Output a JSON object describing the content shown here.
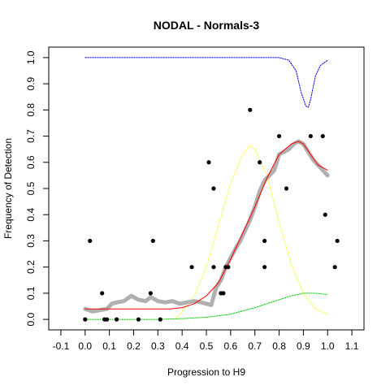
{
  "chart_data": {
    "type": "scatter",
    "title": "NODAL - Normals-3",
    "xlabel": "Progression to H9",
    "ylabel": "Frequency of Detection",
    "xlim": [
      -0.15,
      1.15
    ],
    "ylim": [
      -0.04,
      1.04
    ],
    "x_ticks": [
      -0.1,
      0.0,
      0.1,
      0.2,
      0.3,
      0.4,
      0.5,
      0.6,
      0.7,
      0.8,
      0.9,
      1.0,
      1.1
    ],
    "x_tick_labels": [
      "-0.1",
      "0.0",
      "0.1",
      "0.2",
      "0.3",
      "0.4",
      "0.5",
      "0.6",
      "0.7",
      "0.8",
      "0.9",
      "1.0",
      "1.1"
    ],
    "y_ticks": [
      0.0,
      0.1,
      0.2,
      0.3,
      0.4,
      0.5,
      0.6,
      0.7,
      0.8,
      0.9,
      1.0
    ],
    "y_tick_labels": [
      "0.0",
      "0.1",
      "0.2",
      "0.3",
      "0.4",
      "0.5",
      "0.6",
      "0.7",
      "0.8",
      "0.9",
      "1.0"
    ],
    "colors": {
      "points": "#000000",
      "smoothed": "#b0b0b0",
      "fit": "#ff0000",
      "blue_curve": "#0000ff",
      "yellow_curve": "#ffff66",
      "green_curve": "#00cc00"
    },
    "series": [
      {
        "name": "observed",
        "style": "points",
        "x": [
          0.0,
          0.02,
          0.07,
          0.08,
          0.09,
          0.13,
          0.22,
          0.27,
          0.28,
          0.31,
          0.44,
          0.51,
          0.53,
          0.53,
          0.56,
          0.57,
          0.58,
          0.59,
          0.68,
          0.72,
          0.74,
          0.74,
          0.8,
          0.83,
          0.93,
          0.98,
          0.99,
          1.03,
          1.04
        ],
        "y": [
          0.0,
          0.3,
          0.1,
          0.0,
          0.0,
          0.0,
          0.0,
          0.1,
          0.3,
          0.0,
          0.2,
          0.6,
          0.5,
          0.2,
          0.1,
          0.1,
          0.2,
          0.2,
          0.8,
          0.6,
          0.3,
          0.2,
          0.7,
          0.5,
          0.7,
          0.7,
          0.4,
          0.2,
          0.3
        ]
      },
      {
        "name": "smoothed",
        "style": "thick-line",
        "x": [
          0.0,
          0.03,
          0.06,
          0.09,
          0.11,
          0.13,
          0.16,
          0.19,
          0.22,
          0.25,
          0.27,
          0.3,
          0.33,
          0.36,
          0.39,
          0.42,
          0.45,
          0.48,
          0.5,
          0.52,
          0.54,
          0.56,
          0.58,
          0.6,
          0.62,
          0.64,
          0.66,
          0.68,
          0.7,
          0.72,
          0.74,
          0.76,
          0.78,
          0.8,
          0.82,
          0.84,
          0.86,
          0.88,
          0.9,
          0.92,
          0.94,
          0.96,
          0.98,
          1.0
        ],
        "y": [
          0.04,
          0.03,
          0.035,
          0.04,
          0.06,
          0.065,
          0.07,
          0.09,
          0.075,
          0.07,
          0.085,
          0.07,
          0.065,
          0.07,
          0.06,
          0.065,
          0.07,
          0.065,
          0.06,
          0.055,
          0.12,
          0.15,
          0.2,
          0.235,
          0.27,
          0.3,
          0.34,
          0.38,
          0.43,
          0.49,
          0.53,
          0.55,
          0.57,
          0.63,
          0.64,
          0.65,
          0.67,
          0.68,
          0.67,
          0.64,
          0.61,
          0.59,
          0.57,
          0.55
        ]
      },
      {
        "name": "fit",
        "style": "line",
        "x": [
          0.0,
          0.05,
          0.1,
          0.15,
          0.2,
          0.25,
          0.3,
          0.35,
          0.4,
          0.45,
          0.5,
          0.55,
          0.6,
          0.65,
          0.7,
          0.75,
          0.8,
          0.85,
          0.88,
          0.9,
          0.93,
          0.96,
          1.0
        ],
        "y": [
          0.04,
          0.04,
          0.04,
          0.04,
          0.04,
          0.04,
          0.04,
          0.04,
          0.045,
          0.06,
          0.09,
          0.14,
          0.23,
          0.33,
          0.43,
          0.54,
          0.63,
          0.67,
          0.68,
          0.67,
          0.63,
          0.59,
          0.57
        ]
      },
      {
        "name": "blue",
        "style": "dotted",
        "x": [
          0.0,
          0.2,
          0.4,
          0.6,
          0.8,
          0.84,
          0.87,
          0.89,
          0.91,
          0.92,
          0.93,
          0.95,
          0.97,
          1.0
        ],
        "y": [
          1.0,
          1.0,
          1.0,
          1.0,
          1.0,
          0.99,
          0.95,
          0.87,
          0.815,
          0.81,
          0.84,
          0.93,
          0.97,
          0.99
        ]
      },
      {
        "name": "yellow",
        "style": "line",
        "x": [
          0.37,
          0.4,
          0.45,
          0.5,
          0.55,
          0.6,
          0.65,
          0.68,
          0.7,
          0.75,
          0.8,
          0.85,
          0.9,
          0.95,
          1.0
        ],
        "y": [
          0.0,
          0.03,
          0.09,
          0.2,
          0.36,
          0.52,
          0.63,
          0.665,
          0.65,
          0.55,
          0.37,
          0.21,
          0.1,
          0.04,
          0.02
        ]
      },
      {
        "name": "green",
        "style": "dotted",
        "x": [
          0.0,
          0.1,
          0.2,
          0.3,
          0.4,
          0.5,
          0.6,
          0.7,
          0.8,
          0.85,
          0.9,
          0.95,
          1.0
        ],
        "y": [
          0.0,
          0.0,
          0.0,
          0.0,
          0.003,
          0.008,
          0.02,
          0.045,
          0.075,
          0.09,
          0.1,
          0.1,
          0.095
        ]
      }
    ]
  }
}
